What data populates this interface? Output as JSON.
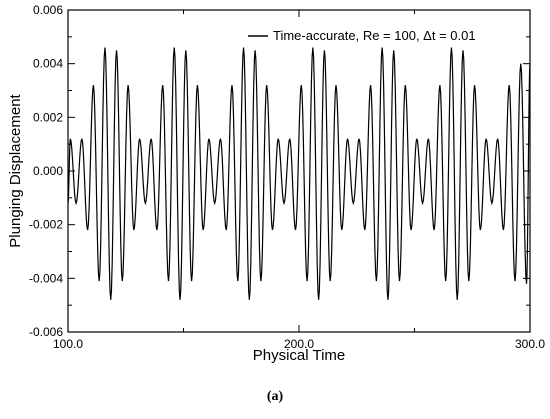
{
  "chart_data": {
    "type": "line",
    "xlabel": "Physical Time",
    "ylabel": "Plunging Displacement",
    "xlim": [
      100.0,
      300.0
    ],
    "ylim": [
      -0.006,
      0.006
    ],
    "x_ticks": [
      100.0,
      200.0,
      300.0
    ],
    "x_tick_labels": [
      "100.0",
      "200.0",
      "300.0"
    ],
    "y_ticks": [
      -0.006,
      -0.004,
      -0.002,
      0.0,
      0.002,
      0.004,
      0.006
    ],
    "y_tick_labels": [
      "-0.006",
      "-0.004",
      "-0.002",
      "0.000",
      "0.002",
      "0.004",
      "0.006"
    ],
    "grid": false,
    "legend_position": "top-right",
    "series": [
      {
        "name": "Time-accurate, Re = 100, Δt = 0.01",
        "color": "#000000",
        "x": [
          100.0,
          101.0,
          103.5,
          106.0,
          108.5,
          111.0,
          113.5,
          116.0,
          118.5,
          121.0,
          123.5,
          126.0,
          128.5,
          131.0,
          133.5,
          136.0,
          138.5,
          141.0,
          143.5,
          146.0,
          148.5,
          151.0,
          153.5,
          156.0,
          158.5,
          161.0,
          163.5,
          166.0,
          168.5,
          171.0,
          173.5,
          176.0,
          178.5,
          181.0,
          183.5,
          186.0,
          188.5,
          191.0,
          193.5,
          196.0,
          198.5,
          201.0,
          203.5,
          206.0,
          208.5,
          211.0,
          213.5,
          216.0,
          218.5,
          221.0,
          223.5,
          226.0,
          228.5,
          231.0,
          233.5,
          236.0,
          238.5,
          241.0,
          243.5,
          246.0,
          248.5,
          251.0,
          253.5,
          256.0,
          258.5,
          261.0,
          263.5,
          266.0,
          268.5,
          271.0,
          273.5,
          276.0,
          278.5,
          281.0,
          283.5,
          286.0,
          288.5,
          291.0,
          293.5,
          296.0,
          298.5,
          300.0
        ],
        "y": [
          -0.0012,
          0.0012,
          -0.0012,
          0.0012,
          -0.0022,
          0.0032,
          -0.0041,
          0.0046,
          -0.0048,
          0.0045,
          -0.0041,
          0.0032,
          -0.0022,
          0.0012,
          -0.0012,
          0.0012,
          -0.0022,
          0.0032,
          -0.0041,
          0.0046,
          -0.0048,
          0.0045,
          -0.0041,
          0.0032,
          -0.0022,
          0.0012,
          -0.0012,
          0.0012,
          -0.0022,
          0.0032,
          -0.0041,
          0.0046,
          -0.0048,
          0.0045,
          -0.0041,
          0.0032,
          -0.0022,
          0.0012,
          -0.0012,
          0.0012,
          -0.0022,
          0.0032,
          -0.0041,
          0.0046,
          -0.0048,
          0.0045,
          -0.0041,
          0.0032,
          -0.0022,
          0.0012,
          -0.0012,
          0.0012,
          -0.0022,
          0.0032,
          -0.0041,
          0.0046,
          -0.0048,
          0.0045,
          -0.0041,
          0.0032,
          -0.0022,
          0.0012,
          -0.0012,
          0.0012,
          -0.0022,
          0.0032,
          -0.0041,
          0.0046,
          -0.0048,
          0.0045,
          -0.0041,
          0.0032,
          -0.0022,
          0.0012,
          -0.0012,
          0.0012,
          -0.0022,
          0.0032,
          -0.0041,
          0.004,
          -0.0042,
          0.004
        ]
      }
    ]
  },
  "caption": "(a)"
}
